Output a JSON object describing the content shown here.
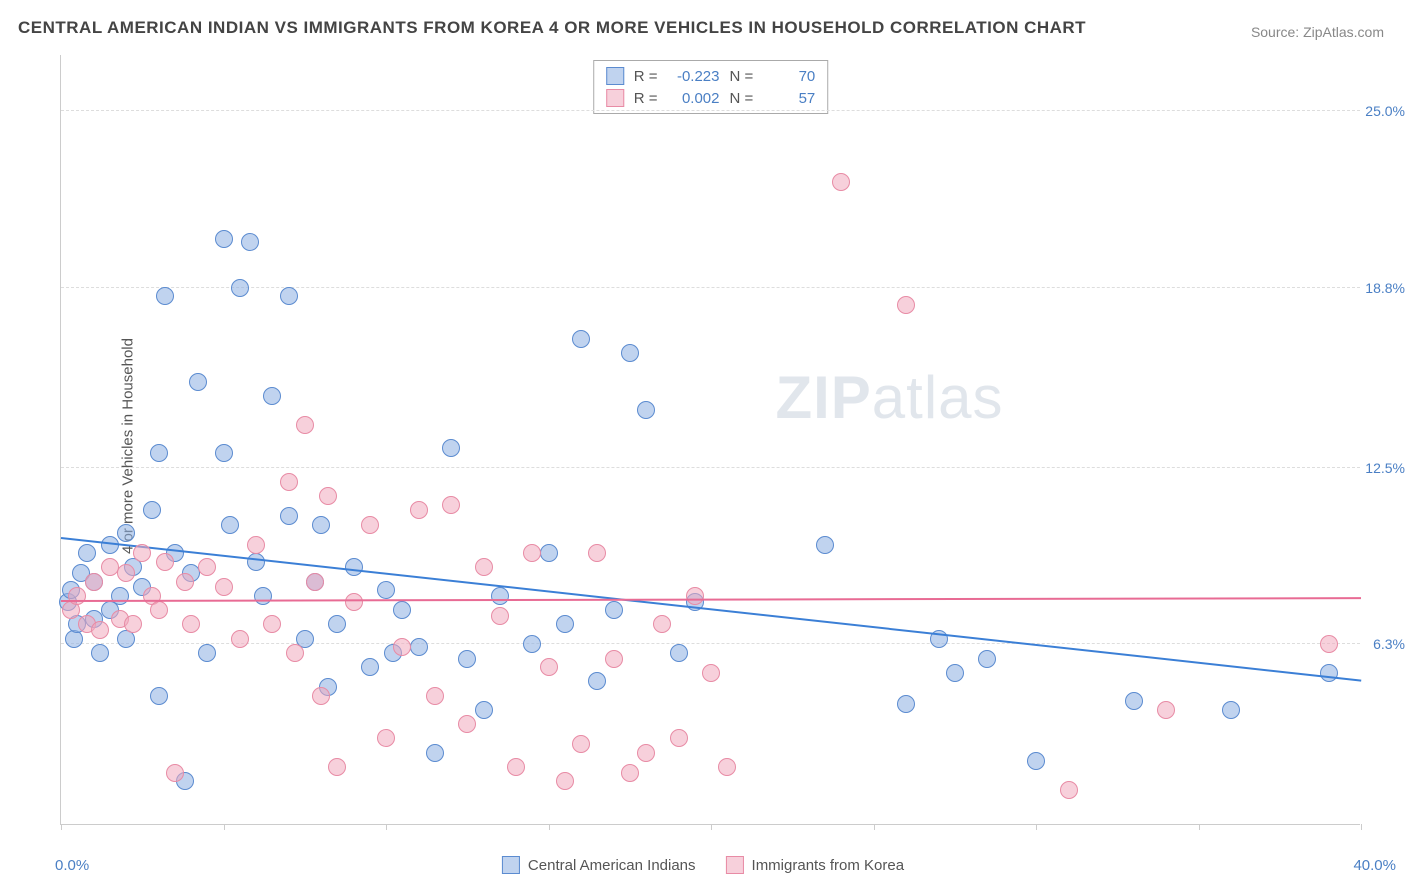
{
  "title": "CENTRAL AMERICAN INDIAN VS IMMIGRANTS FROM KOREA 4 OR MORE VEHICLES IN HOUSEHOLD CORRELATION CHART",
  "source": "Source: ZipAtlas.com",
  "y_axis_label": "4 or more Vehicles in Household",
  "watermark_a": "ZIP",
  "watermark_b": "atlas",
  "axis_label_color": "#4a7fc4",
  "chart": {
    "type": "scatter",
    "xlim": [
      0,
      40
    ],
    "ylim": [
      0,
      27
    ],
    "y_ticks": [
      {
        "value": 6.3,
        "label": "6.3%"
      },
      {
        "value": 12.5,
        "label": "12.5%"
      },
      {
        "value": 18.8,
        "label": "18.8%"
      },
      {
        "value": 25.0,
        "label": "25.0%"
      }
    ],
    "x_ticks": [
      0,
      5,
      10,
      15,
      20,
      25,
      30,
      35,
      40
    ],
    "x_label_min": "0.0%",
    "x_label_max": "40.0%",
    "grid_color": "#dddddd",
    "background_color": "#ffffff",
    "font_family": "Arial",
    "title_fontsize": 17,
    "label_fontsize": 15
  },
  "series": [
    {
      "name": "Central American Indians",
      "marker_fill": "rgba(140,175,225,0.55)",
      "marker_stroke": "#5b8bd0",
      "marker_radius": 9,
      "line_color": "#3b7fd6",
      "line_width": 2,
      "R": "-0.223",
      "N": "70",
      "trend": {
        "x1": 0,
        "y1": 10.0,
        "x2": 40,
        "y2": 5.0
      },
      "points": [
        [
          0.2,
          7.8
        ],
        [
          0.3,
          8.2
        ],
        [
          0.4,
          6.5
        ],
        [
          0.5,
          7.0
        ],
        [
          0.6,
          8.8
        ],
        [
          0.8,
          9.5
        ],
        [
          1.0,
          7.2
        ],
        [
          1.0,
          8.5
        ],
        [
          1.2,
          6.0
        ],
        [
          1.5,
          9.8
        ],
        [
          1.5,
          7.5
        ],
        [
          1.8,
          8.0
        ],
        [
          2.0,
          10.2
        ],
        [
          2.0,
          6.5
        ],
        [
          2.2,
          9.0
        ],
        [
          2.5,
          8.3
        ],
        [
          2.8,
          11.0
        ],
        [
          3.0,
          13.0
        ],
        [
          3.0,
          4.5
        ],
        [
          3.2,
          18.5
        ],
        [
          3.5,
          9.5
        ],
        [
          3.8,
          1.5
        ],
        [
          4.0,
          8.8
        ],
        [
          4.2,
          15.5
        ],
        [
          4.5,
          6.0
        ],
        [
          5.0,
          20.5
        ],
        [
          5.0,
          13.0
        ],
        [
          5.2,
          10.5
        ],
        [
          5.5,
          18.8
        ],
        [
          5.8,
          20.4
        ],
        [
          6.0,
          9.2
        ],
        [
          6.2,
          8.0
        ],
        [
          6.5,
          15.0
        ],
        [
          7.0,
          18.5
        ],
        [
          7.0,
          10.8
        ],
        [
          7.5,
          6.5
        ],
        [
          7.8,
          8.5
        ],
        [
          8.0,
          10.5
        ],
        [
          8.2,
          4.8
        ],
        [
          8.5,
          7.0
        ],
        [
          9.0,
          9.0
        ],
        [
          9.5,
          5.5
        ],
        [
          10.0,
          8.2
        ],
        [
          10.2,
          6.0
        ],
        [
          10.5,
          7.5
        ],
        [
          11.0,
          6.2
        ],
        [
          11.5,
          2.5
        ],
        [
          12.0,
          13.2
        ],
        [
          12.5,
          5.8
        ],
        [
          13.0,
          4.0
        ],
        [
          13.5,
          8.0
        ],
        [
          14.5,
          6.3
        ],
        [
          15.0,
          9.5
        ],
        [
          15.5,
          7.0
        ],
        [
          16.0,
          17.0
        ],
        [
          16.5,
          5.0
        ],
        [
          17.0,
          7.5
        ],
        [
          17.5,
          16.5
        ],
        [
          18.0,
          14.5
        ],
        [
          19.0,
          6.0
        ],
        [
          19.5,
          7.8
        ],
        [
          23.5,
          9.8
        ],
        [
          26.0,
          4.2
        ],
        [
          27.0,
          6.5
        ],
        [
          27.5,
          5.3
        ],
        [
          28.5,
          5.8
        ],
        [
          30.0,
          2.2
        ],
        [
          33.0,
          4.3
        ],
        [
          36.0,
          4.0
        ],
        [
          39.0,
          5.3
        ]
      ]
    },
    {
      "name": "Immigrants from Korea",
      "marker_fill": "rgba(240,170,190,0.55)",
      "marker_stroke": "#e88ba5",
      "marker_radius": 9,
      "line_color": "#e86b94",
      "line_width": 2,
      "R": "0.002",
      "N": "57",
      "trend": {
        "x1": 0,
        "y1": 7.8,
        "x2": 40,
        "y2": 7.9
      },
      "points": [
        [
          0.3,
          7.5
        ],
        [
          0.5,
          8.0
        ],
        [
          0.8,
          7.0
        ],
        [
          1.0,
          8.5
        ],
        [
          1.2,
          6.8
        ],
        [
          1.5,
          9.0
        ],
        [
          1.8,
          7.2
        ],
        [
          2.0,
          8.8
        ],
        [
          2.2,
          7.0
        ],
        [
          2.5,
          9.5
        ],
        [
          2.8,
          8.0
        ],
        [
          3.0,
          7.5
        ],
        [
          3.2,
          9.2
        ],
        [
          3.5,
          1.8
        ],
        [
          3.8,
          8.5
        ],
        [
          4.0,
          7.0
        ],
        [
          4.5,
          9.0
        ],
        [
          5.0,
          8.3
        ],
        [
          5.5,
          6.5
        ],
        [
          6.0,
          9.8
        ],
        [
          6.5,
          7.0
        ],
        [
          7.0,
          12.0
        ],
        [
          7.2,
          6.0
        ],
        [
          7.5,
          14.0
        ],
        [
          7.8,
          8.5
        ],
        [
          8.0,
          4.5
        ],
        [
          8.2,
          11.5
        ],
        [
          8.5,
          2.0
        ],
        [
          9.0,
          7.8
        ],
        [
          9.5,
          10.5
        ],
        [
          10.0,
          3.0
        ],
        [
          10.5,
          6.2
        ],
        [
          11.0,
          11.0
        ],
        [
          11.5,
          4.5
        ],
        [
          12.0,
          11.2
        ],
        [
          12.5,
          3.5
        ],
        [
          13.0,
          9.0
        ],
        [
          13.5,
          7.3
        ],
        [
          14.0,
          2.0
        ],
        [
          14.5,
          9.5
        ],
        [
          15.0,
          5.5
        ],
        [
          15.5,
          1.5
        ],
        [
          16.0,
          2.8
        ],
        [
          16.5,
          9.5
        ],
        [
          17.0,
          5.8
        ],
        [
          17.5,
          1.8
        ],
        [
          18.0,
          2.5
        ],
        [
          18.5,
          7.0
        ],
        [
          19.0,
          3.0
        ],
        [
          20.0,
          5.3
        ],
        [
          20.5,
          2.0
        ],
        [
          24.0,
          22.5
        ],
        [
          26.0,
          18.2
        ],
        [
          31.0,
          1.2
        ],
        [
          34.0,
          4.0
        ],
        [
          39.0,
          6.3
        ],
        [
          19.5,
          8.0
        ]
      ]
    }
  ],
  "stats_labels": {
    "R": "R =",
    "N": "N ="
  },
  "legend": {
    "series1_label": "Central American Indians",
    "series2_label": "Immigrants from Korea"
  }
}
